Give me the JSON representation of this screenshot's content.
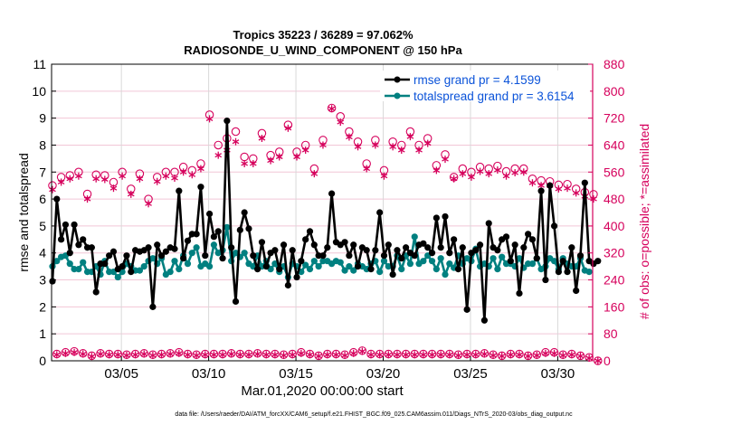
{
  "chart_data": {
    "type": "line",
    "title": "Tropics 35223 / 36289 = 97.062%",
    "subtitle": "RADIOSONDE_U_WIND_COMPONENT @ 150 hPa",
    "xlabel": "Mar.01,2020 00:00:00 start",
    "ylabel": "rmse and totalspread",
    "y2label": "# of obs: o=possible; *=assimilated",
    "footnote": "data file: /Users/raeder/DAI/ATM_forcXX/CAM6_setup/f.e21.FHIST_BGC.f09_025.CAM6assim.011/Diags_NTrS_2020-03/obs_diag_output.nc",
    "xlim": [
      1,
      32
    ],
    "ylim": [
      0,
      11
    ],
    "y2lim": [
      0,
      880
    ],
    "grid": true,
    "legend_position": "top-right",
    "x_ticks": [
      {
        "value": 5,
        "label": "03/05"
      },
      {
        "value": 10,
        "label": "03/10"
      },
      {
        "value": 15,
        "label": "03/15"
      },
      {
        "value": 20,
        "label": "03/20"
      },
      {
        "value": 25,
        "label": "03/25"
      },
      {
        "value": 30,
        "label": "03/30"
      }
    ],
    "y_ticks": [
      0,
      1,
      2,
      3,
      4,
      5,
      6,
      7,
      8,
      9,
      10,
      11
    ],
    "y2_ticks": [
      0,
      80,
      160,
      240,
      320,
      400,
      480,
      560,
      640,
      720,
      800,
      880
    ],
    "colors": {
      "rmse": "#000000",
      "totalspread": "#008080",
      "obs": "#d6005c",
      "legend_text": "#0b53d9",
      "grid": "#f2c6d6",
      "vgrid": "#d9d9d9"
    },
    "x_step_days": 0.25,
    "series": [
      {
        "name": "rmse grand pr = 4.1599",
        "key": "rmse",
        "axis": "left",
        "values": [
          2.95,
          6.0,
          4.5,
          5.05,
          4.0,
          5.05,
          4.3,
          4.5,
          4.2,
          4.2,
          2.55,
          3.6,
          3.6,
          3.9,
          4.05,
          3.4,
          3.5,
          3.9,
          3.3,
          4.1,
          4.05,
          4.1,
          4.2,
          2.0,
          4.3,
          3.9,
          4.05,
          4.2,
          4.15,
          6.3,
          3.8,
          4.45,
          4.7,
          4.7,
          6.45,
          3.9,
          5.45,
          4.6,
          4.8,
          3.8,
          8.9,
          4.2,
          2.2,
          4.85,
          5.5,
          4.9,
          3.9,
          3.4,
          4.4,
          3.5,
          4.0,
          4.1,
          3.4,
          4.3,
          2.8,
          4.1,
          3.1,
          3.7,
          4.5,
          4.8,
          4.3,
          3.9,
          3.9,
          4.2,
          6.2,
          4.4,
          4.3,
          4.4,
          3.9,
          4.3,
          3.5,
          4.2,
          4.1,
          3.4,
          4.1,
          5.5,
          3.9,
          4.3,
          3.2,
          4.1,
          3.8,
          4.2,
          4.0,
          3.9,
          4.3,
          4.35,
          4.2,
          4.0,
          5.3,
          4.2,
          5.35,
          4.0,
          4.5,
          3.4,
          4.2,
          1.9,
          4.0,
          4.1,
          4.3,
          1.5,
          5.1,
          4.2,
          4.1,
          4.5,
          4.6,
          3.7,
          4.3,
          2.5,
          4.2,
          4.7,
          4.5,
          3.8,
          6.3,
          3.0,
          6.5,
          5.0,
          3.3,
          3.7,
          3.3,
          4.2,
          2.6,
          3.9,
          6.6,
          3.7,
          3.6,
          3.7
        ]
      },
      {
        "name": "totalspread grand pr = 3.6154",
        "key": "totalspread",
        "axis": "left",
        "values": [
          3.5,
          3.7,
          3.85,
          3.9,
          3.6,
          3.4,
          3.4,
          3.65,
          3.3,
          3.3,
          3.5,
          3.2,
          3.7,
          3.3,
          3.3,
          3.1,
          3.3,
          3.6,
          3.5,
          3.35,
          3.35,
          3.5,
          3.7,
          3.8,
          3.6,
          3.8,
          3.2,
          3.3,
          3.7,
          3.4,
          3.9,
          3.6,
          4.0,
          4.2,
          3.5,
          3.6,
          3.5,
          4.3,
          4.0,
          4.1,
          4.95,
          3.7,
          4.0,
          3.85,
          4.0,
          3.6,
          3.5,
          3.9,
          3.5,
          3.7,
          3.4,
          3.6,
          3.3,
          3.5,
          3.1,
          3.6,
          3.5,
          3.3,
          3.55,
          3.4,
          3.7,
          3.5,
          3.7,
          3.7,
          3.6,
          3.7,
          3.65,
          3.35,
          3.5,
          3.35,
          3.6,
          3.5,
          3.4,
          3.6,
          3.7,
          3.3,
          3.7,
          3.5,
          3.5,
          3.9,
          3.4,
          3.9,
          3.6,
          4.6,
          3.6,
          3.7,
          3.9,
          3.7,
          3.4,
          3.8,
          3.2,
          3.6,
          3.45,
          3.9,
          3.6,
          3.8,
          3.7,
          4.15,
          3.5,
          3.6,
          3.5,
          3.8,
          3.4,
          3.85,
          3.6,
          3.6,
          3.5,
          3.8,
          3.45,
          3.6,
          3.6,
          3.8,
          3.4,
          3.5,
          3.8,
          3.7,
          3.4,
          3.8,
          3.6,
          3.5,
          3.5,
          3.8,
          3.35,
          3.3
        ]
      },
      {
        "name": "possible",
        "key": "possible",
        "axis": "right",
        "marker": "o",
        "values": [
          520,
          20,
          545,
          25,
          550,
          28,
          560,
          22,
          495,
          15,
          552,
          22,
          550,
          20,
          530,
          20,
          560,
          18,
          510,
          20,
          555,
          22,
          480,
          18,
          545,
          20,
          560,
          22,
          560,
          25,
          575,
          20,
          565,
          18,
          585,
          20,
          730,
          20,
          640,
          20,
          660,
          22,
          680,
          20,
          605,
          20,
          600,
          22,
          675,
          20,
          610,
          20,
          620,
          18,
          700,
          20,
          620,
          25,
          640,
          20,
          570,
          15,
          655,
          20,
          750,
          20,
          725,
          18,
          680,
          25,
          650,
          30,
          585,
          20,
          655,
          20,
          565,
          20,
          650,
          20,
          640,
          20,
          680,
          20,
          640,
          20,
          660,
          20,
          580,
          20,
          612,
          20,
          545,
          18,
          570,
          20,
          560,
          20,
          575,
          22,
          570,
          18,
          578,
          15,
          562,
          20,
          570,
          20,
          570,
          15,
          540,
          18,
          535,
          25,
          532,
          25,
          522,
          18,
          524,
          20,
          510,
          15,
          500,
          10,
          494,
          0
        ]
      },
      {
        "name": "assimilated",
        "key": "assimilated",
        "axis": "right",
        "marker": "*",
        "values": [
          508,
          18,
          530,
          22,
          540,
          25,
          548,
          20,
          480,
          13,
          540,
          20,
          538,
          18,
          512,
          18,
          548,
          16,
          494,
          18,
          540,
          20,
          466,
          16,
          532,
          18,
          548,
          20,
          542,
          22,
          560,
          18,
          552,
          16,
          570,
          18,
          718,
          18,
          610,
          18,
          625,
          20,
          650,
          18,
          585,
          18,
          585,
          20,
          660,
          18,
          594,
          18,
          605,
          16,
          690,
          18,
          605,
          22,
          625,
          18,
          555,
          14,
          640,
          18,
          748,
          18,
          708,
          16,
          664,
          22,
          635,
          28,
          570,
          18,
          640,
          18,
          548,
          18,
          635,
          18,
          625,
          18,
          665,
          18,
          625,
          18,
          645,
          18,
          565,
          18,
          598,
          18,
          540,
          16,
          555,
          18,
          545,
          18,
          562,
          20,
          555,
          16,
          566,
          14,
          548,
          18,
          558,
          18,
          560,
          14,
          528,
          16,
          520,
          22,
          520,
          22,
          510,
          16,
          512,
          18,
          498,
          14,
          488,
          8,
          480,
          0
        ]
      }
    ]
  }
}
